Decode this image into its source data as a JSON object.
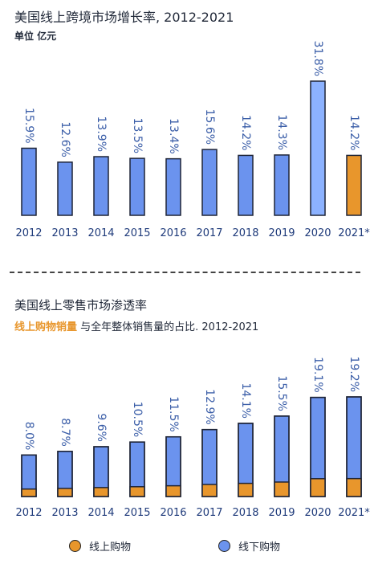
{
  "top": {
    "title": "美国线上跨境市场增长率, 2012-2021",
    "unit": "单位 亿元"
  },
  "bottom": {
    "title": "美国线上零售市场渗透率",
    "subtitle_highlight": "线上购物销量",
    "subtitle_rest": " 与全年整体销售量的占比. 2012-2021"
  },
  "legend": {
    "online": "线上购物",
    "offline": "线下购物"
  },
  "colors": {
    "blue": "#6b93ee",
    "cyan_blue": "#8cb2ff",
    "orange": "#e8962c",
    "outline": "#1e2436",
    "label": "#3b5ea8"
  },
  "chart_data": [
    {
      "type": "bar",
      "title": "美国线上跨境市场增长率, 2012-2021",
      "categories": [
        "2012",
        "2013",
        "2014",
        "2015",
        "2016",
        "2017",
        "2018",
        "2019",
        "2020",
        "2021*"
      ],
      "values": [
        15.9,
        12.6,
        13.9,
        13.5,
        13.4,
        15.6,
        14.2,
        14.3,
        31.8,
        14.2
      ],
      "labels": [
        "15.9%",
        "12.6%",
        "13.9%",
        "13.5%",
        "13.4%",
        "15.6%",
        "14.2%",
        "14.3%",
        "31.8%",
        "14.2%"
      ],
      "unit": "%",
      "highlight": {
        "2020": "cyan_blue",
        "2021*": "orange"
      }
    },
    {
      "type": "bar",
      "stacked": true,
      "title": "美国线上零售市场渗透率",
      "categories": [
        "2012",
        "2013",
        "2014",
        "2015",
        "2016",
        "2017",
        "2018",
        "2019",
        "2020",
        "2021*"
      ],
      "values": [
        8.0,
        8.7,
        9.6,
        10.5,
        11.5,
        12.9,
        14.1,
        15.5,
        19.1,
        19.2
      ],
      "labels": [
        "8.0%",
        "8.7%",
        "9.6%",
        "10.5%",
        "11.5%",
        "12.9%",
        "14.1%",
        "15.5%",
        "19.1%",
        "19.2%"
      ],
      "series": [
        {
          "name": "线上购物",
          "color": "orange"
        },
        {
          "name": "线下购物",
          "color": "blue"
        }
      ]
    }
  ]
}
